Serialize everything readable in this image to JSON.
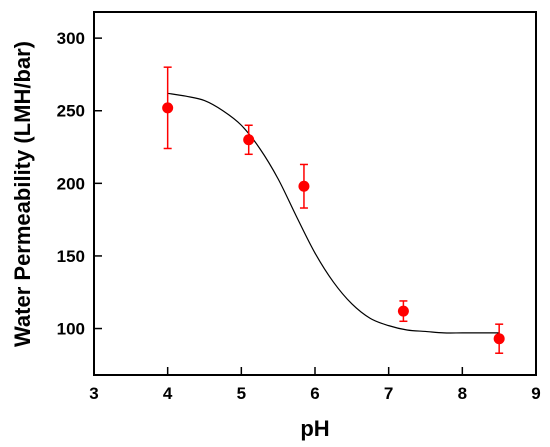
{
  "chart_data": {
    "type": "scatter",
    "title": "",
    "xlabel": "pH",
    "ylabel": "Water Permeability (LMH/bar)",
    "xlim": [
      3,
      9
    ],
    "ylim": [
      68,
      318
    ],
    "x_ticks": [
      3,
      4,
      5,
      6,
      7,
      8,
      9
    ],
    "y_ticks": [
      100,
      150,
      200,
      250,
      300
    ],
    "grid": false,
    "legend": "none",
    "marker_color": "#ff0000",
    "fit_color": "#000000",
    "series": [
      {
        "x": [
          4.0,
          5.1,
          5.85,
          7.2,
          8.5
        ],
        "y": [
          252,
          230,
          198,
          112,
          93
        ],
        "error": [
          28,
          10,
          15,
          7,
          10
        ]
      }
    ],
    "fit_curve": {
      "x": [
        4.0,
        4.25,
        4.5,
        4.75,
        5.0,
        5.25,
        5.5,
        5.75,
        6.0,
        6.25,
        6.5,
        6.75,
        7.0,
        7.25,
        7.5,
        7.75,
        8.0,
        8.25,
        8.5
      ],
      "y": [
        262,
        260,
        257,
        250,
        240,
        224,
        203,
        177,
        152,
        132,
        117,
        107,
        102,
        99,
        98,
        97,
        97,
        97,
        97
      ]
    }
  }
}
